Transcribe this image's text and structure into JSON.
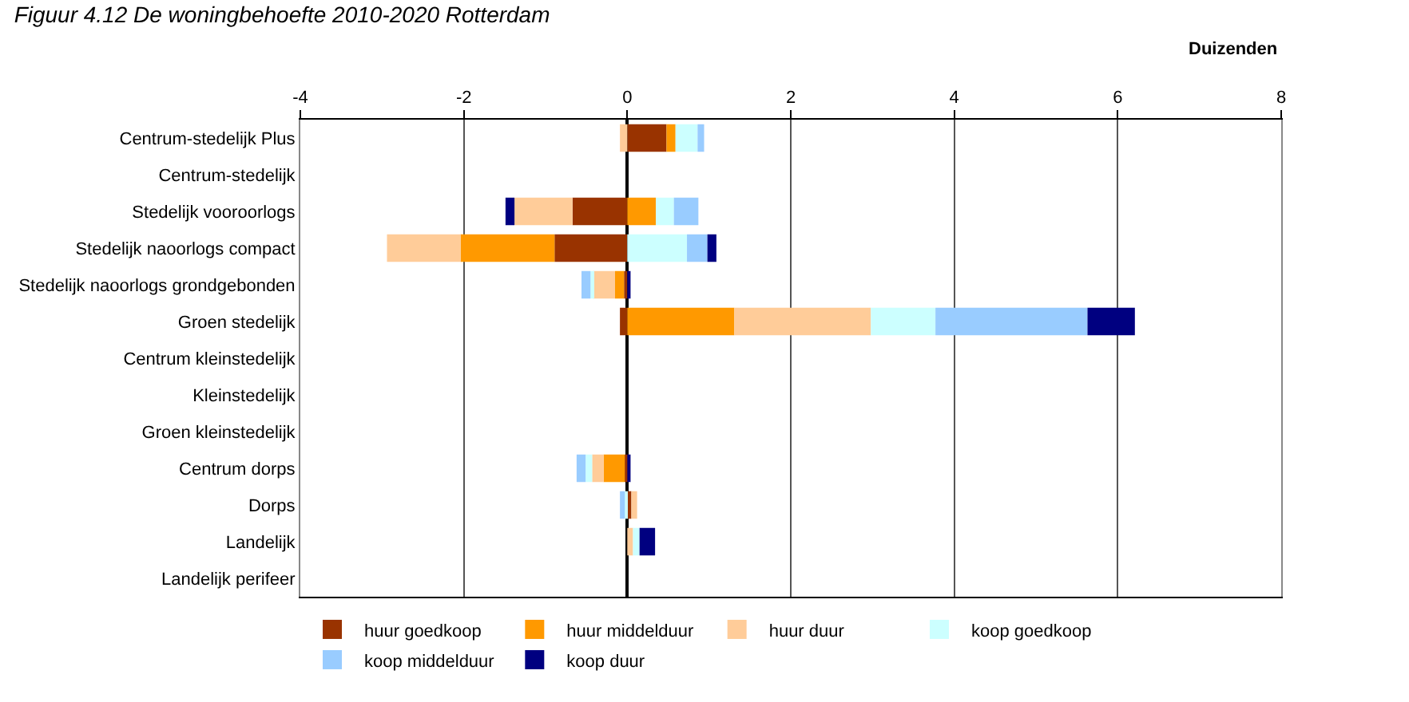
{
  "chart_data": {
    "type": "bar",
    "orientation": "horizontal",
    "stacked": true,
    "title": "Figuur 4.12 De woningbehoefte 2010-2020 Rotterdam",
    "xlabel": "Duizenden",
    "categories": [
      "Centrum-stedelijk Plus",
      "Centrum-stedelijk",
      "Stedelijk vooroorlogs",
      "Stedelijk naoorlogs compact",
      "Stedelijk naoorlogs grondgebonden",
      "Groen stedelijk",
      "Centrum kleinstedelijk",
      "Kleinstedelijk",
      "Groen kleinstedelijk",
      "Centrum dorps",
      "Dorps",
      "Landelijk",
      "Landelijk perifeer"
    ],
    "series": [
      {
        "name": "huur goedkoop",
        "color": "#993300",
        "values": [
          0.48,
          0,
          -0.67,
          -0.89,
          -0.04,
          -0.09,
          0,
          0,
          0,
          -0.03,
          0.05,
          0,
          0
        ]
      },
      {
        "name": "huur middelduur",
        "color": "#ff9900",
        "values": [
          0.11,
          0,
          0.35,
          -1.15,
          -0.11,
          1.31,
          0,
          0,
          0,
          -0.26,
          0,
          0,
          0
        ]
      },
      {
        "name": "huur duur",
        "color": "#ffcc99",
        "values": [
          -0.09,
          0,
          -0.71,
          -0.9,
          -0.27,
          1.67,
          0,
          0,
          0,
          -0.14,
          0.07,
          0.07,
          0
        ]
      },
      {
        "name": "koop goedkoop",
        "color": "#ccffff",
        "values": [
          0.27,
          0,
          0.22,
          0.73,
          -0.03,
          0.79,
          0,
          0,
          0,
          -0.08,
          -0.03,
          0.08,
          0
        ]
      },
      {
        "name": "koop middelduur",
        "color": "#99ccff",
        "values": [
          0.08,
          0,
          0.3,
          0.25,
          -0.11,
          1.86,
          0,
          0,
          0,
          -0.11,
          -0.06,
          0,
          0
        ]
      },
      {
        "name": "koop duur",
        "color": "#000080",
        "values": [
          0,
          0,
          -0.11,
          0.11,
          0.04,
          0.58,
          0,
          0,
          0,
          0.04,
          0,
          0.19,
          0
        ]
      }
    ],
    "xlim": [
      -4,
      8
    ],
    "xticks": [
      -4,
      -2,
      0,
      2,
      4,
      6,
      8
    ],
    "grid": "x",
    "legend": "bottom"
  }
}
